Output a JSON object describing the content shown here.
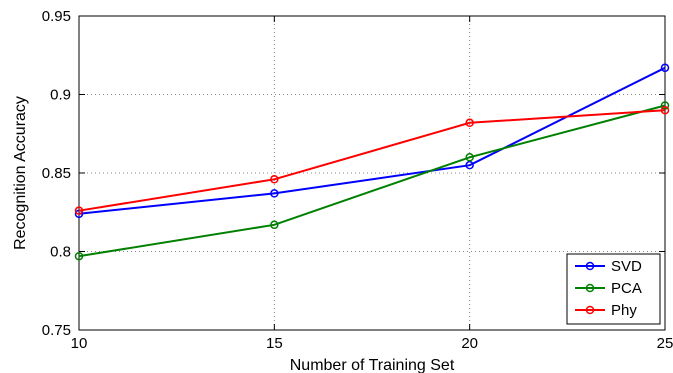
{
  "chart_data": {
    "type": "line",
    "title": "",
    "xlabel": "Number of Training Set",
    "ylabel": "Recognition Accuracy",
    "x": [
      10,
      15,
      20,
      25
    ],
    "xticks": [
      "10",
      "15",
      "20",
      "25"
    ],
    "yticks": [
      "0.75",
      "0.8",
      "0.85",
      "0.9",
      "0.95"
    ],
    "xlim": [
      10,
      25
    ],
    "ylim": [
      0.75,
      0.95
    ],
    "grid": true,
    "legend_position": "bottom-right",
    "series": [
      {
        "name": "SVD",
        "color": "#0000ff",
        "values": [
          0.824,
          0.837,
          0.855,
          0.917
        ]
      },
      {
        "name": "PCA",
        "color": "#008000",
        "values": [
          0.797,
          0.817,
          0.86,
          0.893
        ]
      },
      {
        "name": "Phy",
        "color": "#ff0000",
        "values": [
          0.826,
          0.846,
          0.882,
          0.89
        ]
      }
    ]
  }
}
